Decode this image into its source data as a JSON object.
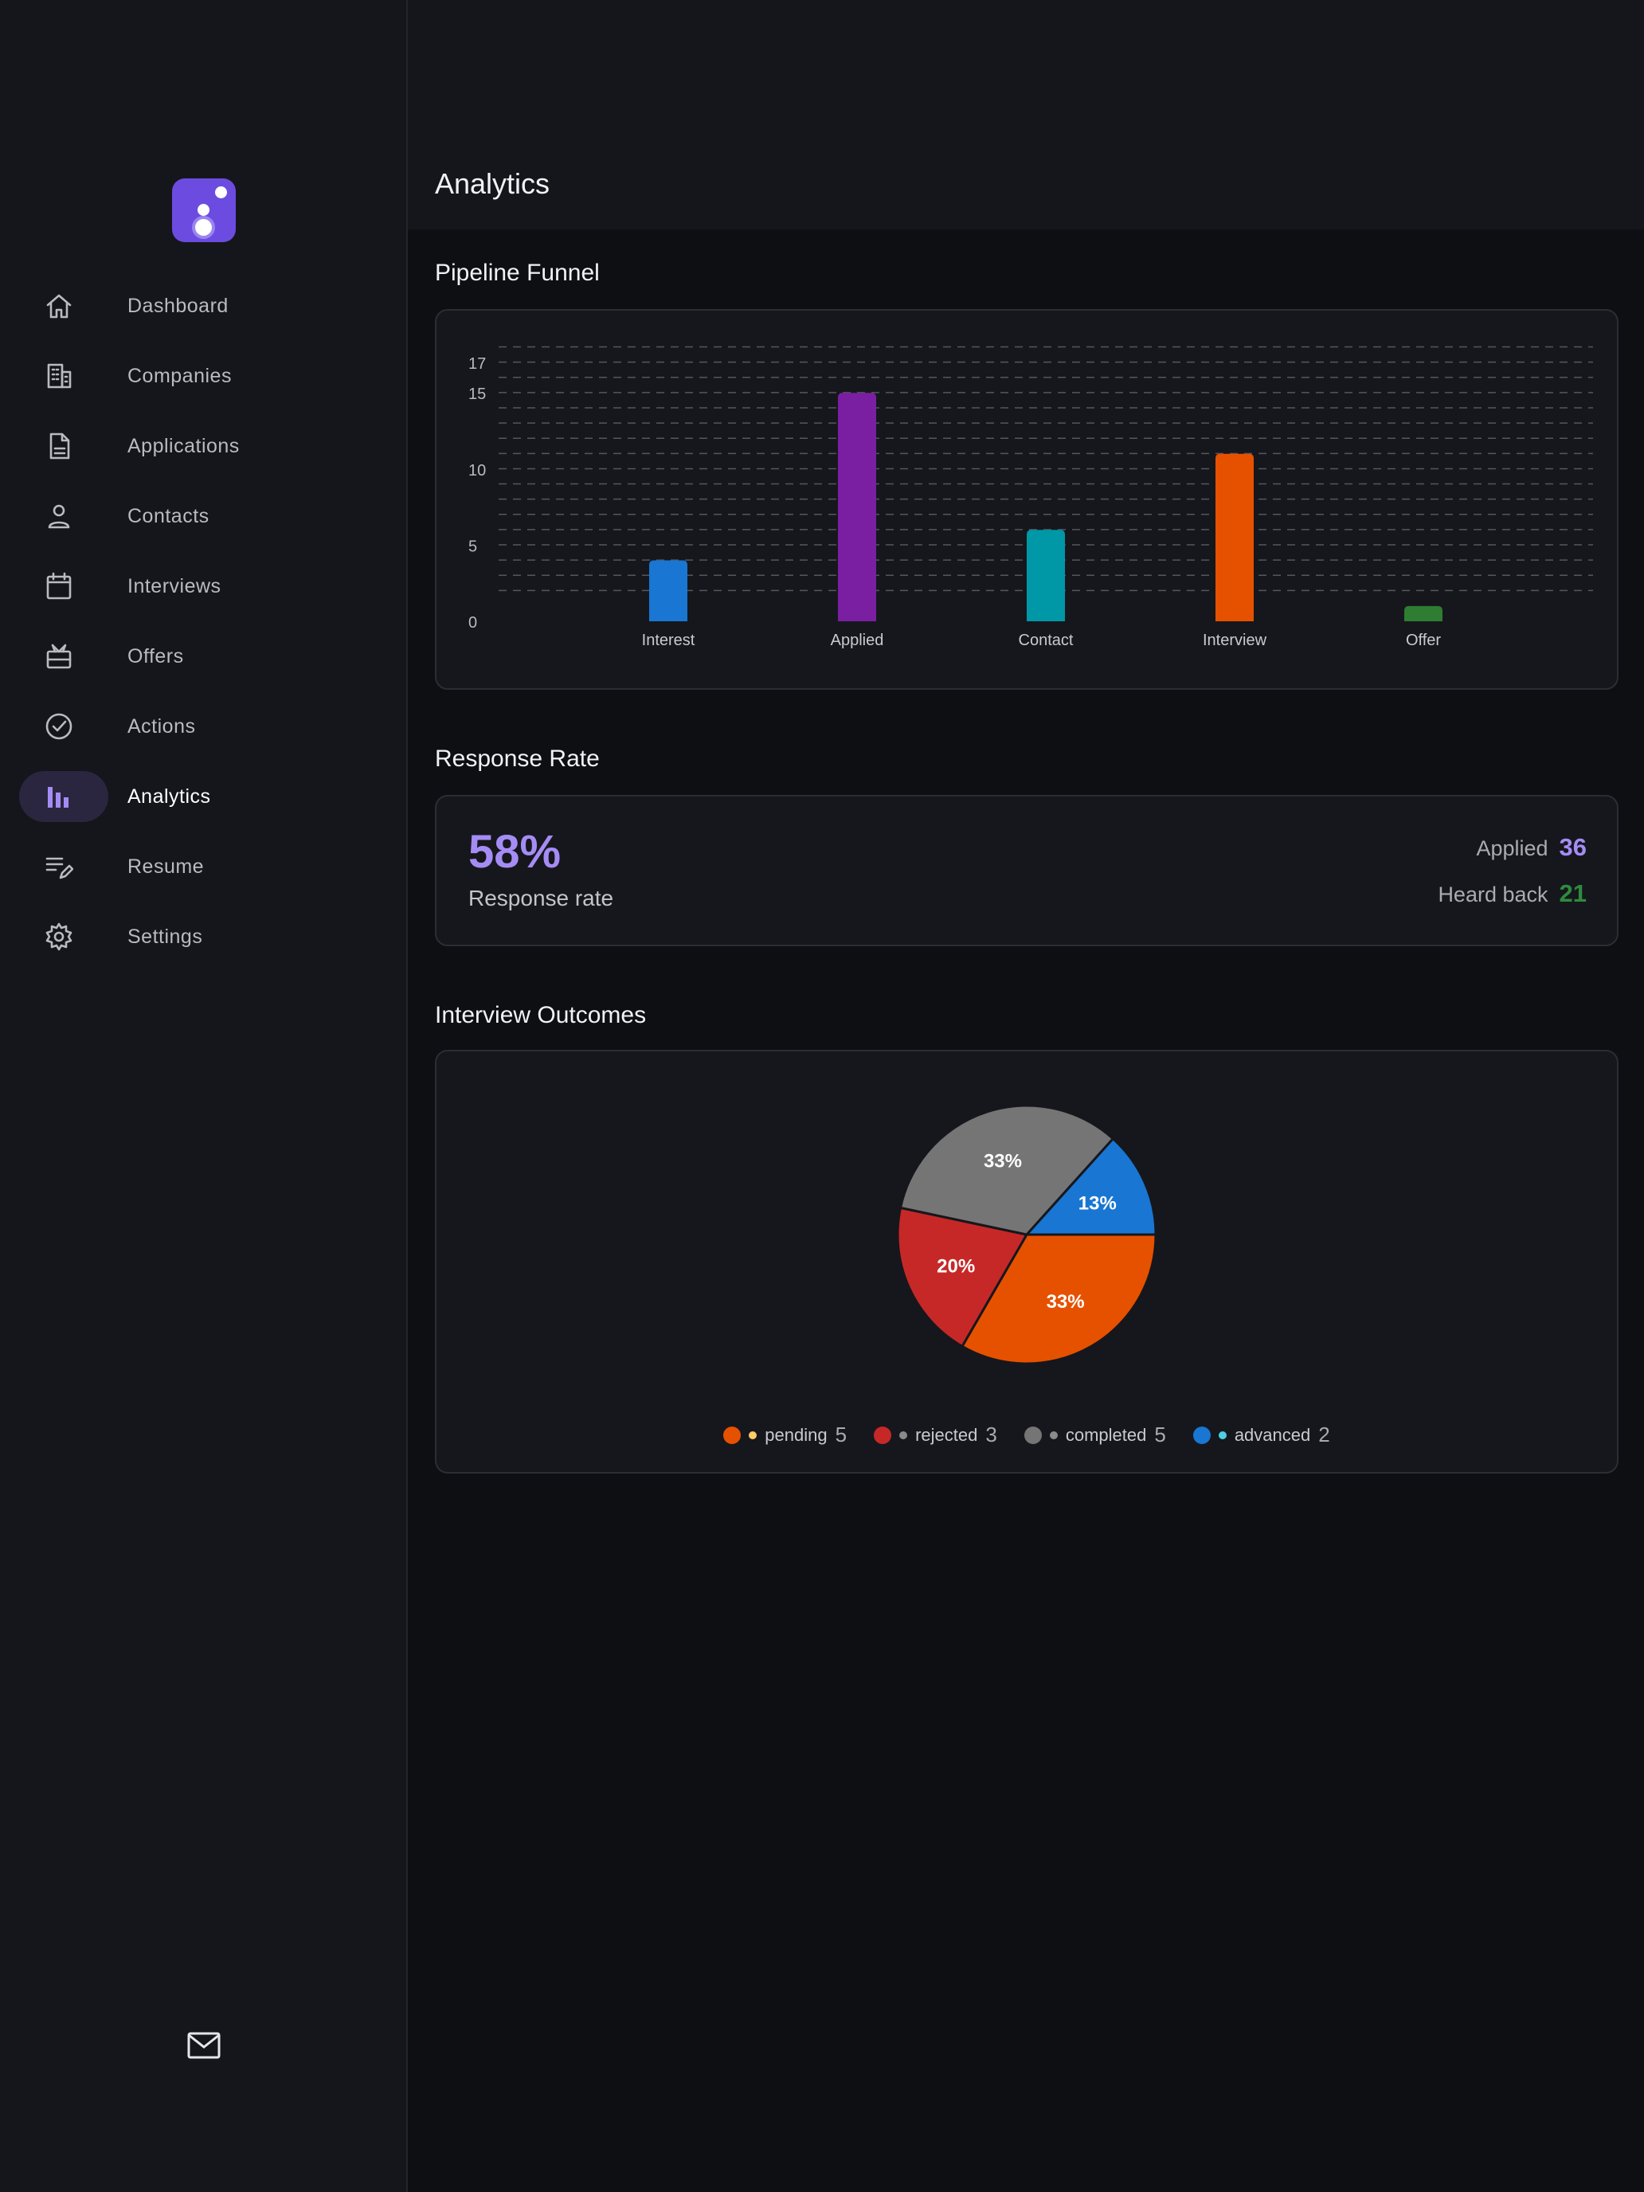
{
  "page": {
    "title": "Analytics"
  },
  "sidebar": {
    "items": [
      {
        "label": "Dashboard",
        "icon": "home-icon",
        "active": false
      },
      {
        "label": "Companies",
        "icon": "building-icon",
        "active": false
      },
      {
        "label": "Applications",
        "icon": "document-icon",
        "active": false
      },
      {
        "label": "Contacts",
        "icon": "person-icon",
        "active": false
      },
      {
        "label": "Interviews",
        "icon": "calendar-icon",
        "active": false
      },
      {
        "label": "Offers",
        "icon": "gift-icon",
        "active": false
      },
      {
        "label": "Actions",
        "icon": "check-circle-icon",
        "active": false
      },
      {
        "label": "Analytics",
        "icon": "analytics-icon",
        "active": true
      },
      {
        "label": "Resume",
        "icon": "edit-note-icon",
        "active": false
      },
      {
        "label": "Settings",
        "icon": "gear-icon",
        "active": false
      }
    ],
    "footer_icon": "mail-icon"
  },
  "sections": {
    "pipeline_title": "Pipeline Funnel",
    "response_title": "Response Rate",
    "outcomes_title": "Interview Outcomes"
  },
  "response_rate": {
    "value": "58%",
    "label": "Response rate",
    "applied_label": "Applied",
    "applied_value": "36",
    "heard_label": "Heard back",
    "heard_value": "21"
  },
  "colors": {
    "accent": "#a58cf5",
    "green": "#2e8b3e",
    "blue": "#1976d2",
    "purple": "#7b1fa2",
    "teal": "#0097a7",
    "orange": "#e65100",
    "red": "#c62828",
    "gray": "#757575"
  },
  "chart_data": [
    {
      "type": "bar",
      "categories": [
        "Interest",
        "Applied",
        "Contact",
        "Interview",
        "Offer"
      ],
      "values": [
        4,
        15,
        6,
        11,
        1
      ],
      "colors": [
        "#1976d2",
        "#7b1fa2",
        "#0097a7",
        "#e65100",
        "#2e7d32"
      ],
      "yticks": [
        "0",
        "5",
        "10",
        "15",
        "17"
      ],
      "ylim": [
        0,
        17
      ],
      "grid": true
    },
    {
      "type": "pie",
      "labels": [
        "pending",
        "rejected",
        "completed",
        "advanced"
      ],
      "values": [
        5,
        3,
        5,
        2
      ],
      "slice_labels": [
        "33%",
        "20%",
        "33%",
        "13%"
      ],
      "counts": [
        "5",
        "3",
        "5",
        "2"
      ],
      "colors": [
        "#e65100",
        "#c62828",
        "#757575",
        "#1976d2"
      ],
      "dot_colors": [
        "#ffcc66",
        "#8a8a8a",
        "#8a8a8a",
        "#4dd0e1"
      ],
      "legend": "bottom"
    }
  ]
}
